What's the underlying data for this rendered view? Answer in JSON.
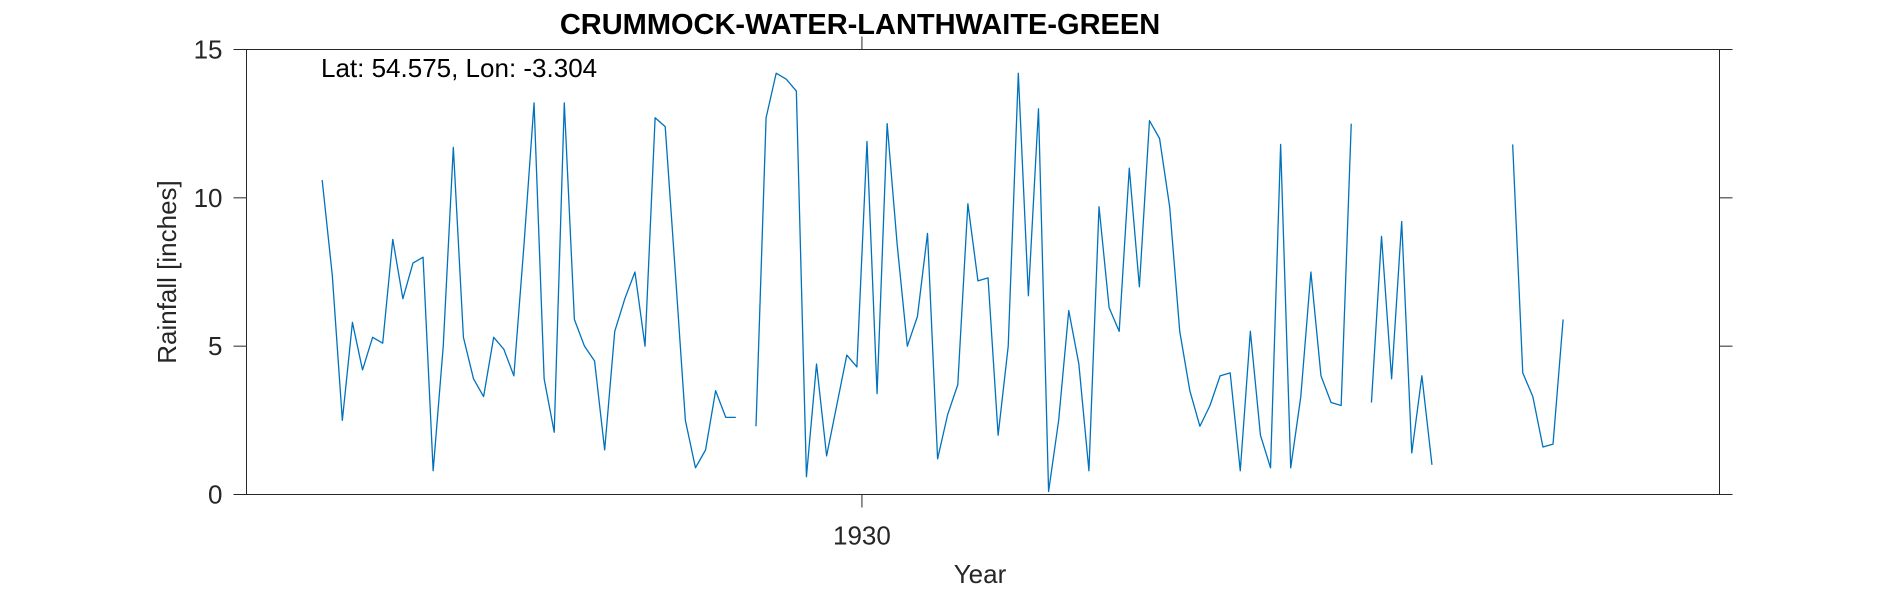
{
  "chart_data": {
    "type": "line",
    "title": "CRUMMOCK-WATER-LANTHWAITE-GREEN",
    "xlabel": "Year",
    "ylabel": "Rainfall [inches]",
    "annotation": "Lat: 54.575, Lon: -3.304",
    "xlim": [
      1899.5,
      1972.5
    ],
    "ylim": [
      0,
      15
    ],
    "x_ticks": [
      1930
    ],
    "x_tick_labels": [
      "1930"
    ],
    "y_ticks": [
      0,
      5,
      10,
      15
    ],
    "y_tick_labels": [
      "0",
      "5",
      "10",
      "15"
    ],
    "grid": false,
    "line_color": "#0072BD",
    "series": [
      {
        "x_start": 1903.25,
        "x_step": 0.5,
        "values": [
          10.6,
          7.4,
          2.5,
          5.8,
          4.2,
          5.3,
          5.1,
          8.6,
          6.6,
          7.8,
          8.0,
          0.8,
          5.0,
          11.7,
          5.3,
          3.9,
          3.3,
          5.3,
          4.9,
          4.0,
          8.4,
          13.2,
          3.9,
          2.1,
          13.2,
          5.9,
          5.0,
          4.5,
          1.5,
          5.5,
          6.6,
          7.5,
          5.0,
          12.7,
          12.4,
          7.5,
          2.5,
          0.9,
          1.5,
          3.5,
          2.6,
          2.6,
          null,
          2.3,
          12.7,
          14.2,
          14.0,
          13.6,
          0.6,
          4.4,
          1.3,
          3.0,
          4.7,
          4.3,
          11.9,
          3.4,
          12.5,
          8.4,
          5.0,
          6.0,
          8.8,
          1.2,
          2.7,
          3.7,
          9.8,
          7.2,
          7.3,
          2.0,
          5.0,
          14.2,
          6.7,
          13.0,
          0.1,
          2.5,
          6.2,
          4.4,
          0.8,
          9.7,
          6.3,
          5.5,
          11.0,
          7.0,
          12.6,
          12.0,
          9.7,
          5.5,
          3.5,
          2.3,
          3.0,
          4.0,
          4.1,
          0.8,
          5.5,
          2.0,
          0.9,
          11.8,
          0.9,
          3.3,
          7.5,
          4.0,
          3.1,
          3.0,
          12.5,
          null,
          3.1,
          8.7,
          3.9,
          9.2,
          1.4,
          4.0,
          1.0,
          null,
          null,
          null,
          null,
          null,
          null,
          null,
          11.8,
          4.1,
          3.3,
          1.6,
          1.7,
          5.9
        ]
      }
    ]
  }
}
